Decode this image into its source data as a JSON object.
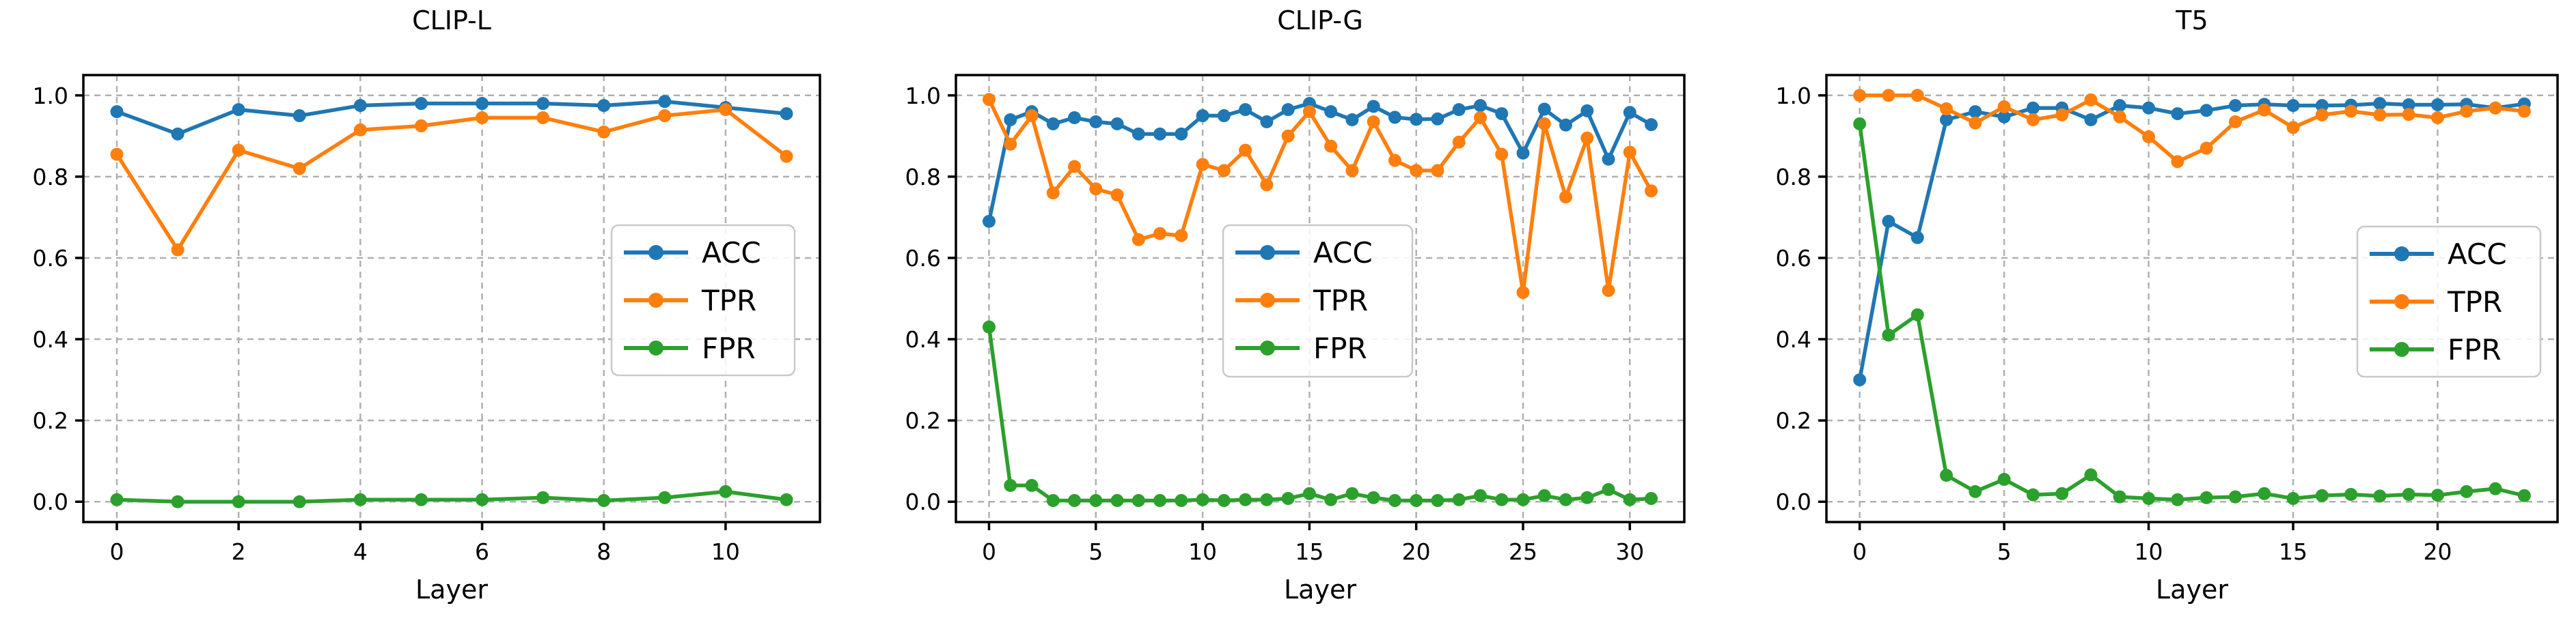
{
  "figure": {
    "background": "#ffffff",
    "text_color": "#000000",
    "grid_color": "#b0b0b0",
    "legend_border_color": "#c9c9c9",
    "series_colors": {
      "ACC": "#1f77b4",
      "TPR": "#ff7f0e",
      "FPR": "#2ca02c"
    },
    "legend_labels": [
      "ACC",
      "TPR",
      "FPR"
    ]
  },
  "chart_data": [
    {
      "type": "line",
      "title": "CLIP-L",
      "xlabel": "Layer",
      "ylim": [
        -0.05,
        1.05
      ],
      "yticks": [
        0.0,
        0.2,
        0.4,
        0.6,
        0.8,
        1.0
      ],
      "ytick_labels": [
        "0.0",
        "0.2",
        "0.4",
        "0.6",
        "0.8",
        "1.0"
      ],
      "xticks": [
        0,
        2,
        4,
        6,
        8,
        10
      ],
      "grid": true,
      "legend_position": "center-right",
      "x": [
        0,
        1,
        2,
        3,
        4,
        5,
        6,
        7,
        8,
        9,
        10,
        11
      ],
      "series": [
        {
          "name": "ACC",
          "color": "#1f77b4",
          "values": [
            0.96,
            0.905,
            0.965,
            0.95,
            0.975,
            0.98,
            0.98,
            0.98,
            0.975,
            0.985,
            0.97,
            0.955
          ]
        },
        {
          "name": "TPR",
          "color": "#ff7f0e",
          "values": [
            0.855,
            0.62,
            0.865,
            0.82,
            0.915,
            0.925,
            0.945,
            0.945,
            0.91,
            0.95,
            0.965,
            0.85
          ]
        },
        {
          "name": "FPR",
          "color": "#2ca02c",
          "values": [
            0.005,
            0.0,
            0.0,
            0.0,
            0.005,
            0.005,
            0.005,
            0.01,
            0.003,
            0.01,
            0.025,
            0.005
          ]
        }
      ]
    },
    {
      "type": "line",
      "title": "CLIP-G",
      "xlabel": "Layer",
      "ylim": [
        -0.05,
        1.05
      ],
      "yticks": [
        0.0,
        0.2,
        0.4,
        0.6,
        0.8,
        1.0
      ],
      "ytick_labels": [
        "0.0",
        "0.2",
        "0.4",
        "0.6",
        "0.8",
        "1.0"
      ],
      "xticks": [
        0,
        5,
        10,
        15,
        20,
        25,
        30
      ],
      "grid": true,
      "legend_position": "lower-center",
      "x": [
        0,
        1,
        2,
        3,
        4,
        5,
        6,
        7,
        8,
        9,
        10,
        11,
        12,
        13,
        14,
        15,
        16,
        17,
        18,
        19,
        20,
        21,
        22,
        23,
        24,
        25,
        26,
        27,
        28,
        29,
        30,
        31
      ],
      "series": [
        {
          "name": "ACC",
          "color": "#1f77b4",
          "values": [
            0.69,
            0.94,
            0.96,
            0.93,
            0.945,
            0.935,
            0.93,
            0.905,
            0.905,
            0.905,
            0.95,
            0.95,
            0.965,
            0.935,
            0.965,
            0.98,
            0.96,
            0.94,
            0.973,
            0.946,
            0.941,
            0.942,
            0.965,
            0.975,
            0.955,
            0.858,
            0.966,
            0.927,
            0.962,
            0.843,
            0.958,
            0.928
          ]
        },
        {
          "name": "TPR",
          "color": "#ff7f0e",
          "values": [
            0.99,
            0.88,
            0.95,
            0.76,
            0.825,
            0.77,
            0.755,
            0.645,
            0.66,
            0.655,
            0.83,
            0.815,
            0.865,
            0.78,
            0.9,
            0.96,
            0.875,
            0.815,
            0.935,
            0.84,
            0.815,
            0.815,
            0.885,
            0.945,
            0.855,
            0.515,
            0.93,
            0.75,
            0.895,
            0.52,
            0.86,
            0.765
          ]
        },
        {
          "name": "FPR",
          "color": "#2ca02c",
          "values": [
            0.43,
            0.04,
            0.04,
            0.003,
            0.003,
            0.003,
            0.003,
            0.003,
            0.003,
            0.003,
            0.005,
            0.003,
            0.005,
            0.005,
            0.008,
            0.02,
            0.005,
            0.02,
            0.01,
            0.003,
            0.003,
            0.003,
            0.005,
            0.015,
            0.005,
            0.005,
            0.015,
            0.005,
            0.01,
            0.03,
            0.005,
            0.008
          ]
        }
      ]
    },
    {
      "type": "line",
      "title": "T5",
      "xlabel": "Layer",
      "ylim": [
        -0.05,
        1.05
      ],
      "yticks": [
        0.0,
        0.2,
        0.4,
        0.6,
        0.8,
        1.0
      ],
      "ytick_labels": [
        "0.0",
        "0.2",
        "0.4",
        "0.6",
        "0.8",
        "1.0"
      ],
      "xticks": [
        0,
        5,
        10,
        15,
        20
      ],
      "grid": true,
      "legend_position": "center-right",
      "x": [
        0,
        1,
        2,
        3,
        4,
        5,
        6,
        7,
        8,
        9,
        10,
        11,
        12,
        13,
        14,
        15,
        16,
        17,
        18,
        19,
        20,
        21,
        22,
        23
      ],
      "series": [
        {
          "name": "ACC",
          "color": "#1f77b4",
          "values": [
            0.3,
            0.69,
            0.65,
            0.94,
            0.96,
            0.947,
            0.969,
            0.969,
            0.94,
            0.975,
            0.969,
            0.955,
            0.963,
            0.975,
            0.978,
            0.975,
            0.975,
            0.976,
            0.98,
            0.977,
            0.977,
            0.978,
            0.969,
            0.979
          ]
        },
        {
          "name": "TPR",
          "color": "#ff7f0e",
          "values": [
            1.0,
            1.0,
            1.0,
            0.967,
            0.932,
            0.972,
            0.94,
            0.952,
            0.989,
            0.947,
            0.898,
            0.837,
            0.87,
            0.935,
            0.964,
            0.921,
            0.952,
            0.961,
            0.952,
            0.953,
            0.945,
            0.961,
            0.969,
            0.961
          ]
        },
        {
          "name": "FPR",
          "color": "#2ca02c",
          "values": [
            0.93,
            0.41,
            0.46,
            0.065,
            0.025,
            0.055,
            0.017,
            0.02,
            0.066,
            0.012,
            0.008,
            0.005,
            0.01,
            0.012,
            0.02,
            0.008,
            0.015,
            0.018,
            0.014,
            0.018,
            0.016,
            0.025,
            0.032,
            0.015
          ]
        }
      ]
    }
  ]
}
